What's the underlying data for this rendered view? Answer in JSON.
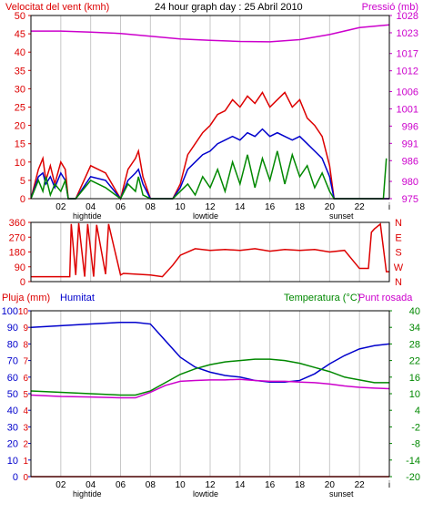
{
  "header": {
    "wind_title": "Velocitat del vent (kmh)",
    "date_title": "24 hour graph day : 25 Abril 2010",
    "pressure_title": "Pressió (mb)"
  },
  "labels": {
    "rain_title": "Pluja (mm)",
    "humidity_title": "Humitat",
    "temp_title": "Temperatura (°C)",
    "dew_title": "Punt rosada",
    "hightide": "hightide",
    "lowtide": "lowtide",
    "sunset": "sunset"
  },
  "colors": {
    "wind_gust": "#dd0000",
    "wind_speed": "#0000cc",
    "wind_green": "#008800",
    "pressure": "#cc00cc",
    "direction": "#dd0000",
    "humidity": "#0000cc",
    "temperature": "#008800",
    "dewpoint": "#cc00cc",
    "rain": "#dd0000",
    "gridline": "#c8c8c8",
    "frame": "#000000"
  },
  "chart_data": [
    {
      "type": "line",
      "panel": "wind-pressure",
      "x_ticks": [
        "02",
        "04",
        "06",
        "08",
        "10",
        "12",
        "14",
        "16",
        "18",
        "20",
        "22",
        "i"
      ],
      "y_left": {
        "ticks": [
          0,
          5,
          10,
          15,
          20,
          25,
          30,
          35,
          40,
          45,
          50
        ],
        "ylim": [
          0,
          50
        ]
      },
      "y_right": {
        "ticks": [
          975,
          980,
          986,
          991,
          996,
          1001,
          1006,
          1012,
          1017,
          1023,
          1028
        ],
        "ylim": [
          975,
          1028
        ]
      },
      "series": [
        {
          "x": [
            0.0,
            0.5,
            0.8,
            1.0,
            1.3,
            1.6,
            2.0,
            2.3,
            2.5,
            3.0,
            4.0,
            5.0,
            6.0,
            6.5,
            7.0,
            7.2,
            7.5,
            8.0,
            8.5,
            9.0,
            9.5,
            10.0,
            10.5,
            11.0,
            11.5,
            12.0,
            12.5,
            13.0,
            13.5,
            14.0,
            14.5,
            15.0,
            15.5,
            16.0,
            16.5,
            17.0,
            17.5,
            18.0,
            18.5,
            19.0,
            19.5,
            20.0,
            20.3,
            21.0,
            22.0,
            23.0,
            24.0
          ],
          "values": [
            0,
            8,
            11,
            5,
            9,
            4,
            10,
            8,
            0,
            0,
            9,
            7,
            0,
            8,
            11,
            13,
            6,
            0,
            0,
            0,
            0,
            4,
            12,
            15,
            18,
            20,
            23,
            24,
            27,
            25,
            28,
            26,
            29,
            25,
            27,
            29,
            25,
            27,
            22,
            20,
            17,
            9,
            0,
            0,
            0,
            0,
            0
          ]
        },
        {
          "x": [
            0.0,
            0.5,
            0.8,
            1.0,
            1.3,
            1.6,
            2.0,
            2.3,
            2.5,
            3.0,
            4.0,
            5.0,
            6.0,
            6.5,
            7.0,
            7.2,
            7.5,
            8.0,
            8.5,
            9.0,
            9.5,
            10.0,
            10.5,
            11.0,
            11.5,
            12.0,
            12.5,
            13.0,
            13.5,
            14.0,
            14.5,
            15.0,
            15.5,
            16.0,
            16.5,
            17.0,
            17.5,
            18.0,
            18.5,
            19.0,
            19.5,
            20.0,
            20.3,
            21.0,
            22.0,
            23.0,
            24.0
          ],
          "values": [
            0,
            6,
            7,
            4,
            6,
            3,
            7,
            5,
            0,
            0,
            6,
            5,
            0,
            5,
            7,
            8,
            4,
            0,
            0,
            0,
            0,
            3,
            8,
            10,
            12,
            13,
            15,
            16,
            17,
            16,
            18,
            17,
            19,
            17,
            18,
            17,
            16,
            17,
            15,
            13,
            11,
            6,
            0,
            0,
            0,
            0,
            0
          ]
        },
        {
          "x": [
            0.0,
            0.5,
            0.8,
            1.0,
            1.3,
            1.6,
            2.0,
            2.3,
            2.5,
            3.0,
            4.0,
            5.0,
            6.0,
            6.5,
            7.0,
            7.2,
            7.5,
            8.0,
            8.5,
            9.0,
            9.5,
            10.0,
            10.5,
            11.0,
            11.5,
            12.0,
            12.5,
            13.0,
            13.5,
            14.0,
            14.5,
            15.0,
            15.5,
            16.0,
            16.5,
            17.0,
            17.5,
            18.0,
            18.5,
            19.0,
            19.5,
            20.0,
            20.3,
            21.0,
            22.0,
            23.0,
            23.6,
            23.8
          ],
          "values": [
            0,
            5,
            2,
            6,
            1,
            4,
            2,
            5,
            0,
            0,
            5,
            3,
            0,
            4,
            2,
            6,
            1,
            0,
            0,
            0,
            0,
            2,
            4,
            1,
            6,
            3,
            8,
            2,
            10,
            4,
            12,
            3,
            11,
            5,
            13,
            4,
            12,
            6,
            9,
            3,
            7,
            2,
            0,
            0,
            0,
            0,
            0,
            11
          ]
        },
        {
          "x": [
            0,
            2,
            4,
            6,
            8,
            10,
            12,
            14,
            16,
            18,
            20,
            22,
            24
          ],
          "values": [
            1023.5,
            1023.5,
            1023.2,
            1022.8,
            1022.0,
            1021.2,
            1020.8,
            1020.5,
            1020.4,
            1021.0,
            1022.5,
            1024.5,
            1025.3
          ]
        }
      ]
    },
    {
      "type": "line",
      "panel": "wind-direction",
      "y_left": {
        "ticks": [
          0,
          90,
          180,
          270,
          360
        ],
        "ylim": [
          0,
          360
        ]
      },
      "y_right_labels": [
        "N",
        "W",
        "S",
        "E",
        "N"
      ],
      "series": [
        {
          "x": [
            0,
            2.6,
            2.7,
            3.0,
            3.2,
            3.6,
            3.8,
            4.2,
            4.4,
            5.0,
            5.2,
            6.0,
            6.2,
            8.0,
            8.8,
            9.5,
            10.0,
            11.0,
            12.0,
            13.0,
            14.0,
            15.0,
            16.0,
            17.0,
            18.0,
            19.0,
            20.0,
            21.0,
            22.0,
            22.6,
            22.8,
            23.0,
            23.4,
            23.8,
            24.0
          ],
          "values": [
            30,
            30,
            350,
            40,
            355,
            30,
            350,
            30,
            345,
            45,
            350,
            40,
            50,
            40,
            30,
            100,
            160,
            200,
            190,
            195,
            190,
            200,
            185,
            195,
            190,
            195,
            180,
            190,
            80,
            80,
            300,
            320,
            350,
            60,
            60
          ]
        }
      ]
    },
    {
      "type": "line",
      "panel": "rain-humidity-temperature",
      "y_left_rain": {
        "ticks": [
          0,
          1,
          2,
          3,
          4,
          5,
          6,
          7,
          8,
          9,
          10
        ],
        "ylim": [
          0,
          10
        ]
      },
      "y_left_humidity": {
        "ticks": [
          0,
          10,
          20,
          30,
          40,
          50,
          60,
          70,
          80,
          90,
          100
        ],
        "ylim": [
          0,
          100
        ]
      },
      "y_right": {
        "ticks": [
          -20,
          -14,
          -8,
          -2,
          4,
          10,
          16,
          22,
          28,
          34,
          40
        ],
        "ylim": [
          -20,
          40
        ]
      },
      "series": [
        {
          "x": [
            0,
            2,
            4,
            6,
            7,
            8,
            9,
            10,
            11,
            12,
            13,
            14,
            15,
            16,
            17,
            18,
            19,
            20,
            21,
            22,
            23,
            24
          ],
          "values": [
            90,
            91,
            92,
            93,
            93,
            92,
            82,
            72,
            66,
            63,
            61,
            60,
            58,
            57,
            57,
            58,
            62,
            68,
            73,
            77,
            79,
            80
          ]
        },
        {
          "x": [
            0,
            2,
            4,
            6,
            7,
            8,
            9,
            10,
            11,
            12,
            13,
            14,
            15,
            16,
            17,
            18,
            19,
            20,
            21,
            22,
            23,
            24
          ],
          "values": [
            11,
            10.5,
            10,
            9.5,
            9.5,
            11,
            14,
            17,
            19,
            20.5,
            21.5,
            22,
            22.5,
            22.5,
            22,
            21,
            19.5,
            18,
            16,
            15,
            14,
            14
          ]
        },
        {
          "x": [
            0,
            2,
            4,
            6,
            7,
            8,
            9,
            10,
            11,
            12,
            13,
            14,
            15,
            16,
            17,
            18,
            19,
            20,
            21,
            22,
            23,
            24
          ],
          "values": [
            9.5,
            9,
            8.8,
            8.5,
            8.5,
            10.5,
            13,
            14.5,
            14.8,
            15,
            15,
            15.2,
            14.8,
            14.5,
            14.5,
            14.2,
            14,
            13.5,
            12.8,
            12.3,
            12,
            11.8
          ]
        },
        {
          "x": [
            0,
            24
          ],
          "values": [
            0,
            0
          ]
        }
      ]
    }
  ]
}
